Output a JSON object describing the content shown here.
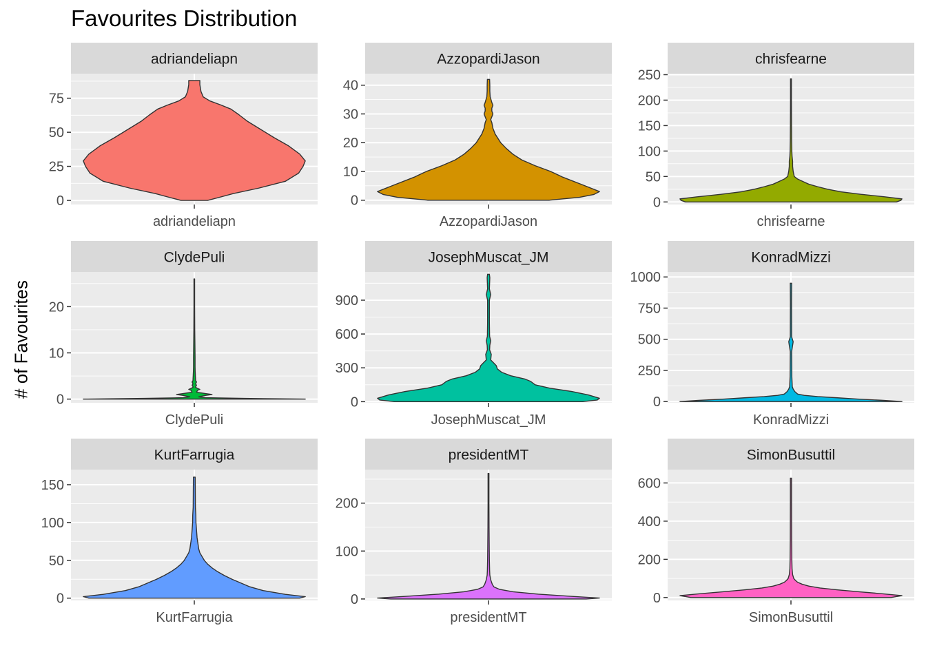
{
  "chart_data": {
    "type": "violin",
    "title": "Favourites Distribution",
    "xlabel": "",
    "ylabel": "# of Favourites",
    "grid": true,
    "legend": "none",
    "panels": [
      {
        "name": "adriandeliapn",
        "color": "#F8766D",
        "ylim": [
          -3,
          93
        ],
        "yticks": [
          0,
          25,
          50,
          75
        ],
        "profile": [
          [
            0,
            0.12
          ],
          [
            3,
            0.26
          ],
          [
            5,
            0.35
          ],
          [
            9,
            0.58
          ],
          [
            14,
            0.82
          ],
          [
            20,
            0.94
          ],
          [
            25,
            0.98
          ],
          [
            29,
            1.0
          ],
          [
            34,
            0.95
          ],
          [
            40,
            0.85
          ],
          [
            46,
            0.72
          ],
          [
            52,
            0.6
          ],
          [
            58,
            0.48
          ],
          [
            63,
            0.4
          ],
          [
            67,
            0.33
          ],
          [
            70,
            0.24
          ],
          [
            73,
            0.14
          ],
          [
            76,
            0.08
          ],
          [
            80,
            0.06
          ],
          [
            85,
            0.05
          ],
          [
            88,
            0.05
          ]
        ]
      },
      {
        "name": "AzzopardiJason",
        "color": "#D39200",
        "ylim": [
          -1.5,
          44
        ],
        "yticks": [
          0,
          10,
          20,
          30,
          40
        ],
        "profile": [
          [
            0,
            0.55
          ],
          [
            1,
            0.82
          ],
          [
            2,
            0.95
          ],
          [
            3,
            1.0
          ],
          [
            5,
            0.87
          ],
          [
            8,
            0.67
          ],
          [
            10,
            0.56
          ],
          [
            12,
            0.42
          ],
          [
            14,
            0.3
          ],
          [
            16,
            0.22
          ],
          [
            18,
            0.16
          ],
          [
            20,
            0.11
          ],
          [
            23,
            0.06
          ],
          [
            25,
            0.04
          ],
          [
            27,
            0.03
          ],
          [
            28,
            0.02
          ],
          [
            29,
            0.03
          ],
          [
            30,
            0.04
          ],
          [
            31,
            0.03
          ],
          [
            32,
            0.03
          ],
          [
            33,
            0.04
          ],
          [
            34,
            0.03
          ],
          [
            36,
            0.015
          ],
          [
            38,
            0.012
          ],
          [
            40,
            0.012
          ],
          [
            42,
            0.01
          ]
        ]
      },
      {
        "name": "chrisfearne",
        "color": "#93AA00",
        "ylim": [
          -5,
          252
        ],
        "yticks": [
          0,
          50,
          100,
          150,
          200,
          250
        ],
        "profile": [
          [
            0,
            0.95
          ],
          [
            3,
            0.99
          ],
          [
            6,
            1.0
          ],
          [
            10,
            0.85
          ],
          [
            15,
            0.63
          ],
          [
            20,
            0.45
          ],
          [
            25,
            0.33
          ],
          [
            30,
            0.24
          ],
          [
            35,
            0.16
          ],
          [
            40,
            0.11
          ],
          [
            45,
            0.06
          ],
          [
            50,
            0.03
          ],
          [
            60,
            0.02
          ],
          [
            70,
            0.015
          ],
          [
            80,
            0.015
          ],
          [
            90,
            0.01
          ],
          [
            100,
            0.008
          ],
          [
            120,
            0.006
          ],
          [
            150,
            0.005
          ],
          [
            200,
            0.004
          ],
          [
            242,
            0.004
          ]
        ]
      },
      {
        "name": "ClydePuli",
        "color": "#00BA38",
        "ylim": [
          -0.8,
          27.5
        ],
        "yticks": [
          0,
          10,
          20
        ],
        "profile": [
          [
            0,
            1.0
          ],
          [
            0.15,
            0.45
          ],
          [
            0.3,
            0.1
          ],
          [
            0.5,
            0.04
          ],
          [
            0.8,
            0.1
          ],
          [
            1.0,
            0.16
          ],
          [
            1.2,
            0.1
          ],
          [
            1.5,
            0.02
          ],
          [
            1.9,
            0.03
          ],
          [
            2.1,
            0.05
          ],
          [
            2.3,
            0.03
          ],
          [
            2.6,
            0.01
          ],
          [
            3,
            0.02
          ],
          [
            3.3,
            0.012
          ],
          [
            3.7,
            0.02
          ],
          [
            4,
            0.012
          ],
          [
            5,
            0.01
          ],
          [
            6,
            0.008
          ],
          [
            7,
            0.007
          ],
          [
            8,
            0.007
          ],
          [
            9,
            0.007
          ],
          [
            11,
            0.006
          ],
          [
            13,
            0.005
          ],
          [
            15,
            0.004
          ],
          [
            20,
            0.003
          ],
          [
            26,
            0.003
          ]
        ]
      },
      {
        "name": "JosephMuscat_JM",
        "color": "#00C19F",
        "ylim": [
          -10,
          1150
        ],
        "yticks": [
          0,
          300,
          600,
          900
        ],
        "profile": [
          [
            0,
            0.85
          ],
          [
            15,
            0.98
          ],
          [
            30,
            1.0
          ],
          [
            60,
            0.9
          ],
          [
            90,
            0.75
          ],
          [
            120,
            0.55
          ],
          [
            150,
            0.42
          ],
          [
            180,
            0.38
          ],
          [
            200,
            0.33
          ],
          [
            230,
            0.2
          ],
          [
            260,
            0.12
          ],
          [
            290,
            0.08
          ],
          [
            320,
            0.07
          ],
          [
            340,
            0.05
          ],
          [
            370,
            0.02
          ],
          [
            420,
            0.025
          ],
          [
            460,
            0.01
          ],
          [
            500,
            0.012
          ],
          [
            540,
            0.02
          ],
          [
            580,
            0.01
          ],
          [
            700,
            0.008
          ],
          [
            900,
            0.008
          ],
          [
            950,
            0.02
          ],
          [
            1000,
            0.008
          ],
          [
            1100,
            0.012
          ],
          [
            1130,
            0.008
          ]
        ]
      },
      {
        "name": "KonradMizzi",
        "color": "#00B9E3",
        "ylim": [
          -10,
          1040
        ],
        "yticks": [
          0,
          250,
          500,
          750,
          1000
        ],
        "profile": [
          [
            0,
            1.0
          ],
          [
            10,
            0.82
          ],
          [
            20,
            0.6
          ],
          [
            30,
            0.42
          ],
          [
            40,
            0.24
          ],
          [
            50,
            0.12
          ],
          [
            60,
            0.06
          ],
          [
            80,
            0.035
          ],
          [
            100,
            0.02
          ],
          [
            120,
            0.012
          ],
          [
            200,
            0.008
          ],
          [
            400,
            0.006
          ],
          [
            480,
            0.02
          ],
          [
            520,
            0.006
          ],
          [
            800,
            0.005
          ],
          [
            950,
            0.006
          ]
        ]
      },
      {
        "name": "KurtFarrugia",
        "color": "#619CFF",
        "ylim": [
          -3,
          170
        ],
        "yticks": [
          0,
          50,
          100,
          150
        ],
        "profile": [
          [
            0,
            0.95
          ],
          [
            2,
            1.0
          ],
          [
            5,
            0.82
          ],
          [
            10,
            0.62
          ],
          [
            15,
            0.5
          ],
          [
            20,
            0.42
          ],
          [
            25,
            0.34
          ],
          [
            30,
            0.27
          ],
          [
            35,
            0.21
          ],
          [
            40,
            0.16
          ],
          [
            45,
            0.12
          ],
          [
            50,
            0.09
          ],
          [
            55,
            0.07
          ],
          [
            60,
            0.05
          ],
          [
            65,
            0.04
          ],
          [
            70,
            0.035
          ],
          [
            75,
            0.03
          ],
          [
            80,
            0.025
          ],
          [
            90,
            0.02
          ],
          [
            100,
            0.015
          ],
          [
            110,
            0.014
          ],
          [
            120,
            0.01
          ],
          [
            140,
            0.009
          ],
          [
            160,
            0.008
          ]
        ]
      },
      {
        "name": "presidentMT",
        "color": "#DB72FB",
        "ylim": [
          -3,
          270
        ],
        "yticks": [
          0,
          100,
          200
        ],
        "profile": [
          [
            0,
            0.88
          ],
          [
            2,
            1.0
          ],
          [
            5,
            0.78
          ],
          [
            10,
            0.45
          ],
          [
            15,
            0.22
          ],
          [
            20,
            0.1
          ],
          [
            25,
            0.05
          ],
          [
            30,
            0.035
          ],
          [
            40,
            0.02
          ],
          [
            50,
            0.012
          ],
          [
            60,
            0.01
          ],
          [
            80,
            0.008
          ],
          [
            100,
            0.007
          ],
          [
            150,
            0.005
          ],
          [
            200,
            0.004
          ],
          [
            262,
            0.004
          ]
        ]
      },
      {
        "name": "SimonBusuttil",
        "color": "#FF61C3",
        "ylim": [
          -15,
          670
        ],
        "yticks": [
          0,
          200,
          400,
          600
        ],
        "profile": [
          [
            0,
            0.9
          ],
          [
            10,
            1.0
          ],
          [
            20,
            0.82
          ],
          [
            30,
            0.62
          ],
          [
            40,
            0.42
          ],
          [
            50,
            0.26
          ],
          [
            60,
            0.16
          ],
          [
            70,
            0.1
          ],
          [
            80,
            0.06
          ],
          [
            90,
            0.04
          ],
          [
            100,
            0.025
          ],
          [
            120,
            0.015
          ],
          [
            150,
            0.01
          ],
          [
            200,
            0.008
          ],
          [
            300,
            0.006
          ],
          [
            500,
            0.005
          ],
          [
            625,
            0.005
          ]
        ]
      }
    ]
  }
}
